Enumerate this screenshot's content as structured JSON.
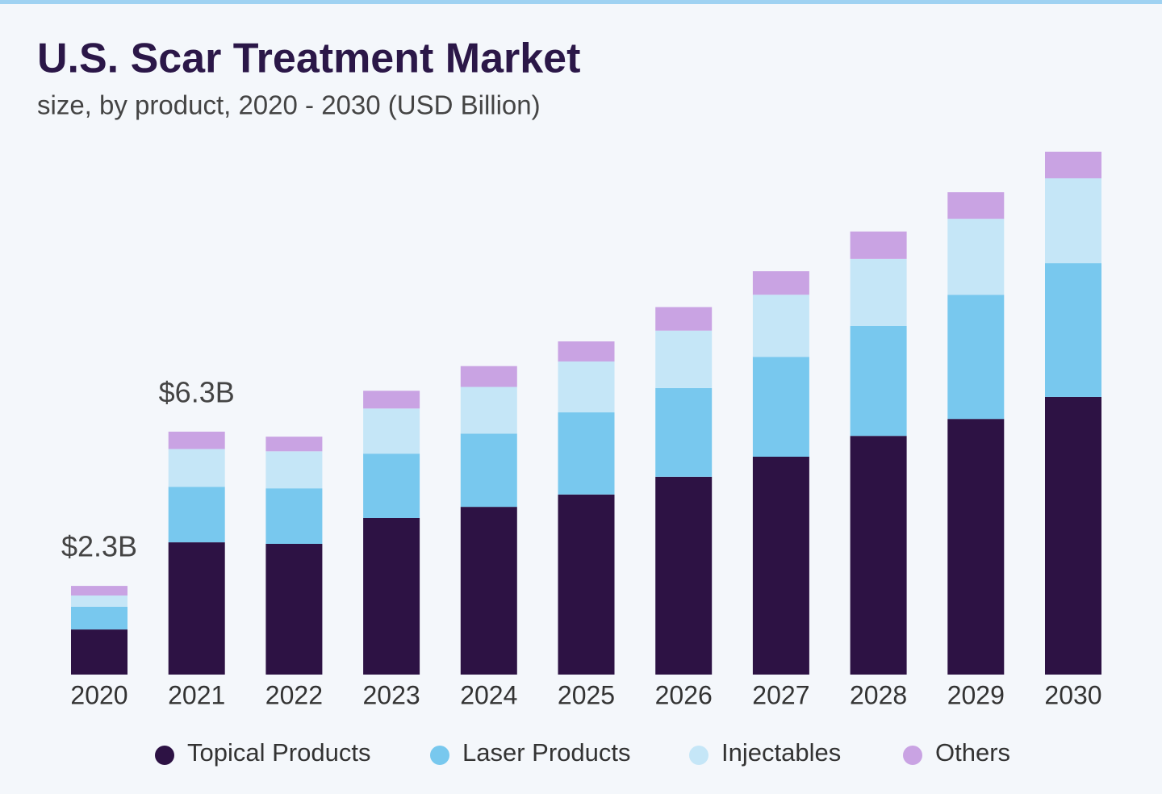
{
  "chart_data": {
    "type": "stacked-bar",
    "title": "U.S. Scar Treatment Market",
    "subtitle": "size, by product, 2020 - 2030 (USD Billion)",
    "categories": [
      "2020",
      "2021",
      "2022",
      "2023",
      "2024",
      "2025",
      "2026",
      "2027",
      "2028",
      "2029",
      "2030"
    ],
    "series": [
      {
        "name": "Topical Products",
        "color": "#2d1244",
        "values": [
          1.17,
          3.43,
          3.39,
          4.06,
          4.35,
          4.67,
          5.13,
          5.65,
          6.19,
          6.63,
          7.2
        ]
      },
      {
        "name": "Laser Products",
        "color": "#78c8ee",
        "values": [
          0.59,
          1.44,
          1.44,
          1.67,
          1.9,
          2.13,
          2.3,
          2.59,
          2.85,
          3.22,
          3.47
        ]
      },
      {
        "name": "Injectables",
        "color": "#c5e6f7",
        "values": [
          0.29,
          0.98,
          0.96,
          1.17,
          1.21,
          1.32,
          1.49,
          1.61,
          1.74,
          1.97,
          2.2
        ]
      },
      {
        "name": "Others",
        "color": "#c9a3e3",
        "values": [
          0.25,
          0.45,
          0.38,
          0.46,
          0.54,
          0.52,
          0.61,
          0.61,
          0.71,
          0.69,
          0.69
        ]
      }
    ],
    "annotations": [
      {
        "category": "2020",
        "label": "$2.3B",
        "value": 2.3
      },
      {
        "category": "2021",
        "label": "$6.3B",
        "value": 6.3
      }
    ],
    "legend": "bottom"
  }
}
